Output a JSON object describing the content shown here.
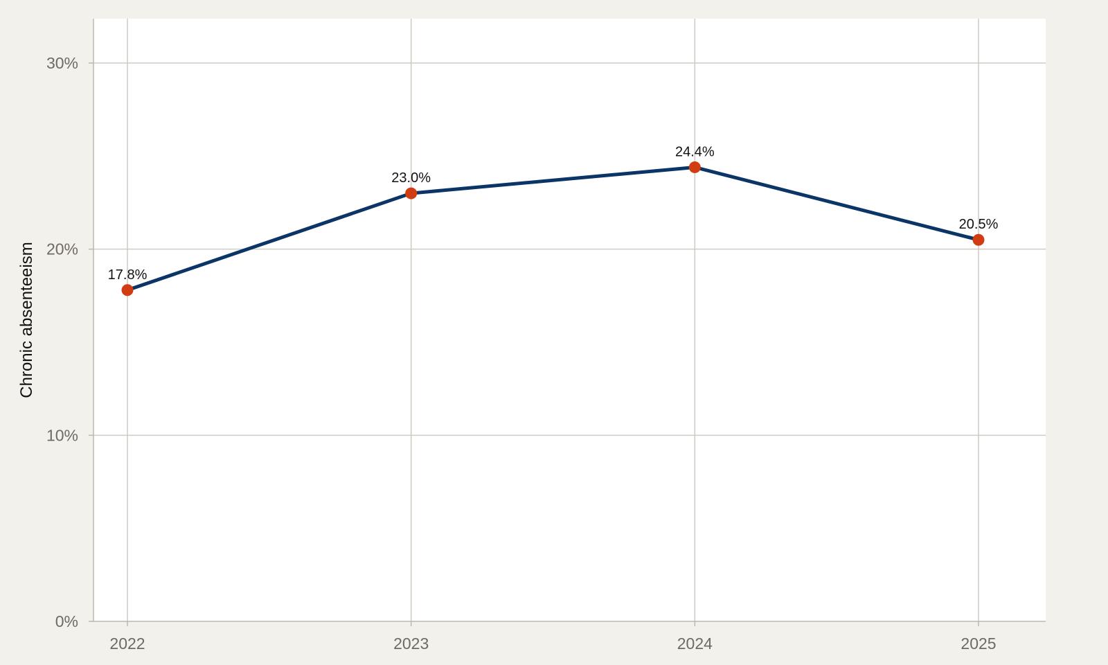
{
  "chart_data": {
    "type": "line",
    "title": "",
    "xlabel": "",
    "ylabel": "Chronic absenteeism",
    "x": [
      "2022",
      "2023",
      "2024",
      "2025"
    ],
    "series": [
      {
        "values": [
          17.8,
          23.0,
          24.4,
          20.5
        ],
        "labels": [
          "17.8%",
          "23.0%",
          "24.4%",
          "20.5%"
        ]
      }
    ],
    "ylim": [
      0,
      30
    ],
    "yticks": [
      0,
      10,
      20,
      30
    ],
    "ytick_labels": [
      "0%",
      "10%",
      "20%",
      "30%"
    ],
    "grid": true,
    "legend": "none",
    "colors": {
      "line": "#0b3566",
      "marker": "#d13c12",
      "background": "#f3f1ec",
      "plot_background": "#ffffff",
      "grid": "#cfcbc3"
    }
  }
}
